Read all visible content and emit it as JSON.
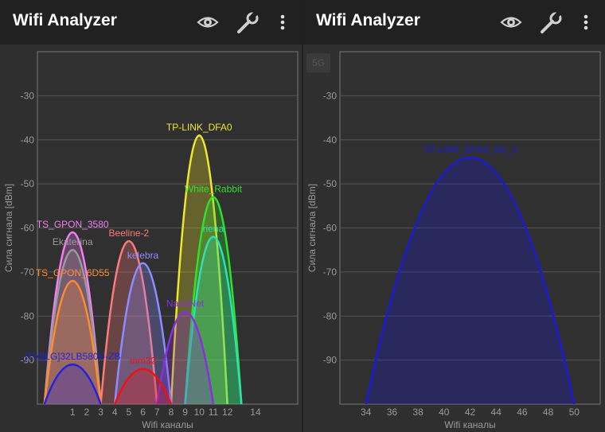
{
  "left": {
    "title": "Wifi Analyzer",
    "chart_data": {
      "type": "area",
      "xlabel": "Wifi каналы",
      "ylabel": "Сила сигнала [dBm]",
      "ylim": [
        -100,
        -20
      ],
      "yticks": [
        -30,
        -40,
        -50,
        -60,
        -70,
        -80,
        -90
      ],
      "xlim": [
        -1.5,
        17
      ],
      "xticks": [
        1,
        2,
        3,
        4,
        5,
        6,
        7,
        8,
        9,
        10,
        11,
        12,
        14
      ],
      "grid": true,
      "series": [
        {
          "name": "TP-LINK_DFA0",
          "channel": 10,
          "width": 2,
          "signal": -39,
          "color": "#f0e629"
        },
        {
          "name": "White_Rabbit",
          "channel": 11,
          "width": 2,
          "signal": -53,
          "color": "#2fe02f"
        },
        {
          "name": "riena",
          "channel": 11,
          "width": 2,
          "signal": -62,
          "color": "#2fe0b0"
        },
        {
          "name": "TS_GPON_3580",
          "channel": 1,
          "width": 2,
          "signal": -61,
          "color": "#f27ff0"
        },
        {
          "name": "Ekaterina",
          "channel": 1,
          "width": 2,
          "signal": -65,
          "color": "#9a9a9a"
        },
        {
          "name": "Beeline-2",
          "channel": 5,
          "width": 2,
          "signal": -63,
          "color": "#ff7a7a"
        },
        {
          "name": "kelebra",
          "channel": 6,
          "width": 2,
          "signal": -68,
          "color": "#8c8cff"
        },
        {
          "name": "TS_GPON_6D55",
          "channel": 1,
          "width": 2,
          "signal": -72,
          "color": "#ff8c2f"
        },
        {
          "name": "NariaNet",
          "channel": 9,
          "width": 2,
          "signal": -79,
          "color": "#8a2fe0"
        },
        {
          "name": "[TV][LG]32LB580U-ZB",
          "channel": 1,
          "width": 2,
          "signal": -91,
          "color": "#2222dd"
        },
        {
          "name": "mm32",
          "channel": 6,
          "width": 2,
          "signal": -92,
          "color": "#ee1111"
        }
      ]
    }
  },
  "right": {
    "title": "Wifi Analyzer",
    "band_badge": "5G",
    "chart_data": {
      "type": "area",
      "xlabel": "Wifi каналы",
      "ylabel": "Сила сигнала [dBm]",
      "ylim": [
        -100,
        -20
      ],
      "yticks": [
        -30,
        -40,
        -50,
        -60,
        -70,
        -80,
        -90
      ],
      "xlim": [
        32,
        52
      ],
      "xticks": [
        34,
        36,
        38,
        40,
        42,
        44,
        46,
        48,
        50
      ],
      "grid": true,
      "series": [
        {
          "name": "TP-LINK_DFA0_5G_1",
          "channel": 42,
          "width": 8,
          "signal": -44,
          "color": "#1a1ad8"
        }
      ]
    }
  },
  "icons": {
    "eye": "eye-icon",
    "wrench": "wrench-icon",
    "more": "more-vert-icon"
  }
}
